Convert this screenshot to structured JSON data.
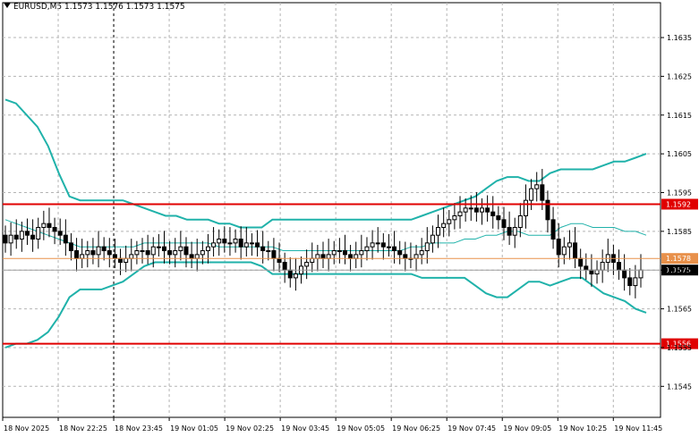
{
  "header": {
    "symbol": "EURUSD,M5",
    "open": "1.1573",
    "high": "1.1576",
    "low": "1.1573",
    "close": "1.1575"
  },
  "colors": {
    "background": "#ffffff",
    "grid": "#b4b4b4",
    "candle": "#000000",
    "band": "#20b2aa",
    "middle": "#20b2aa",
    "level_red": "#e00000",
    "level_orange": "#e8904a",
    "current_line": "#a0a0a0"
  },
  "chart_data": {
    "type": "candlestick",
    "ylim": [
      1.1537,
      1.1644
    ],
    "y_ticks": [
      "1.1635",
      "1.1625",
      "1.1615",
      "1.1605",
      "1.1595",
      "1.1585",
      "1.1575",
      "1.1565",
      "1.1555",
      "1.1545"
    ],
    "x_ticks": [
      "18 Nov 2025",
      "18 Nov 22:25",
      "18 Nov 23:45",
      "19 Nov 01:05",
      "19 Nov 02:25",
      "19 Nov 03:45",
      "19 Nov 05:05",
      "19 Nov 06:25",
      "19 Nov 07:45",
      "19 Nov 09:05",
      "19 Nov 10:25",
      "19 Nov 11:45"
    ],
    "levels": [
      {
        "label": "1.1592",
        "value": 1.1592,
        "color": "#e00000"
      },
      {
        "label": "1.1578",
        "value": 1.1578,
        "color": "#e8904a"
      },
      {
        "label": "1.1556",
        "value": 1.1556,
        "color": "#e00000"
      }
    ],
    "current_price": {
      "label": "1.1575",
      "value": 1.1575
    },
    "close": [
      1.1582,
      1.1584,
      1.1583,
      1.1585,
      1.1584,
      1.1583,
      1.1586,
      1.1587,
      1.1586,
      1.1585,
      1.1584,
      1.1582,
      1.158,
      1.1578,
      1.1579,
      1.158,
      1.1579,
      1.1581,
      1.158,
      1.1579,
      1.1578,
      1.1577,
      1.1578,
      1.1579,
      1.158,
      1.158,
      1.1579,
      1.1581,
      1.1581,
      1.158,
      1.1579,
      1.158,
      1.1581,
      1.1579,
      1.1578,
      1.1579,
      1.158,
      1.1581,
      1.1582,
      1.1583,
      1.1582,
      1.1582,
      1.1583,
      1.1581,
      1.1582,
      1.1582,
      1.1581,
      1.158,
      1.158,
      1.1578,
      1.1577,
      1.1575,
      1.1573,
      1.1574,
      1.1576,
      1.1577,
      1.1578,
      1.1579,
      1.1578,
      1.1579,
      1.158,
      1.158,
      1.1579,
      1.1578,
      1.1579,
      1.158,
      1.1581,
      1.1582,
      1.1582,
      1.1581,
      1.1581,
      1.158,
      1.1579,
      1.1578,
      1.1578,
      1.1579,
      1.158,
      1.1582,
      1.1584,
      1.1586,
      1.1587,
      1.1588,
      1.1589,
      1.159,
      1.1591,
      1.1591,
      1.159,
      1.1591,
      1.159,
      1.1589,
      1.1588,
      1.1586,
      1.1584,
      1.1586,
      1.1589,
      1.1593,
      1.1596,
      1.1597,
      1.1593,
      1.1588,
      1.1583,
      1.1579,
      1.1581,
      1.1582,
      1.1578,
      1.1576,
      1.1575,
      1.1574,
      1.1575,
      1.1577,
      1.1579,
      1.1577,
      1.1575,
      1.1573,
      1.1571,
      1.1573,
      1.1575
    ],
    "bands": {
      "upper": [
        1.1619,
        1.1618,
        1.1615,
        1.1612,
        1.1607,
        1.16,
        1.1594,
        1.1593,
        1.1593,
        1.1593,
        1.1593,
        1.1593,
        1.1592,
        1.1591,
        1.159,
        1.1589,
        1.1589,
        1.1588,
        1.1588,
        1.1588,
        1.1587,
        1.1587,
        1.1586,
        1.1586,
        1.1586,
        1.1588,
        1.1588,
        1.1588,
        1.1588,
        1.1588,
        1.1588,
        1.1588,
        1.1588,
        1.1588,
        1.1588,
        1.1588,
        1.1588,
        1.1588,
        1.1588,
        1.1589,
        1.159,
        1.1591,
        1.1592,
        1.1593,
        1.1594,
        1.1596,
        1.1598,
        1.1599,
        1.1599,
        1.1598,
        1.1598,
        1.16,
        1.1601,
        1.1601,
        1.1601,
        1.1601,
        1.1602,
        1.1603,
        1.1603,
        1.1604,
        1.1605
      ],
      "lower": [
        1.1555,
        1.1556,
        1.1556,
        1.1557,
        1.1559,
        1.1563,
        1.1568,
        1.157,
        1.157,
        1.157,
        1.1571,
        1.1572,
        1.1574,
        1.1576,
        1.1577,
        1.1577,
        1.1577,
        1.1577,
        1.1577,
        1.1577,
        1.1577,
        1.1577,
        1.1577,
        1.1577,
        1.1576,
        1.1574,
        1.1574,
        1.1574,
        1.1574,
        1.1574,
        1.1574,
        1.1574,
        1.1574,
        1.1574,
        1.1574,
        1.1574,
        1.1574,
        1.1574,
        1.1574,
        1.1573,
        1.1573,
        1.1573,
        1.1573,
        1.1573,
        1.1571,
        1.1569,
        1.1568,
        1.1568,
        1.157,
        1.1572,
        1.1572,
        1.1571,
        1.1572,
        1.1573,
        1.1573,
        1.1571,
        1.1569,
        1.1568,
        1.1567,
        1.1565,
        1.1564
      ],
      "middle": [
        1.1588,
        1.1587,
        1.1586,
        1.1585,
        1.1584,
        1.1583,
        1.1582,
        1.1581,
        1.1581,
        1.1581,
        1.1581,
        1.1581,
        1.1581,
        1.1582,
        1.1582,
        1.1582,
        1.1582,
        1.1582,
        1.1582,
        1.1582,
        1.1581,
        1.1581,
        1.1581,
        1.1581,
        1.1581,
        1.1581,
        1.158,
        1.158,
        1.158,
        1.158,
        1.158,
        1.158,
        1.158,
        1.158,
        1.158,
        1.158,
        1.158,
        1.158,
        1.1581,
        1.1581,
        1.1582,
        1.1582,
        1.1582,
        1.1583,
        1.1583,
        1.1584,
        1.1584,
        1.1585,
        1.1585,
        1.1584,
        1.1584,
        1.1584,
        1.1586,
        1.1587,
        1.1587,
        1.1586,
        1.1586,
        1.1586,
        1.1585,
        1.1585,
        1.1584
      ]
    }
  }
}
